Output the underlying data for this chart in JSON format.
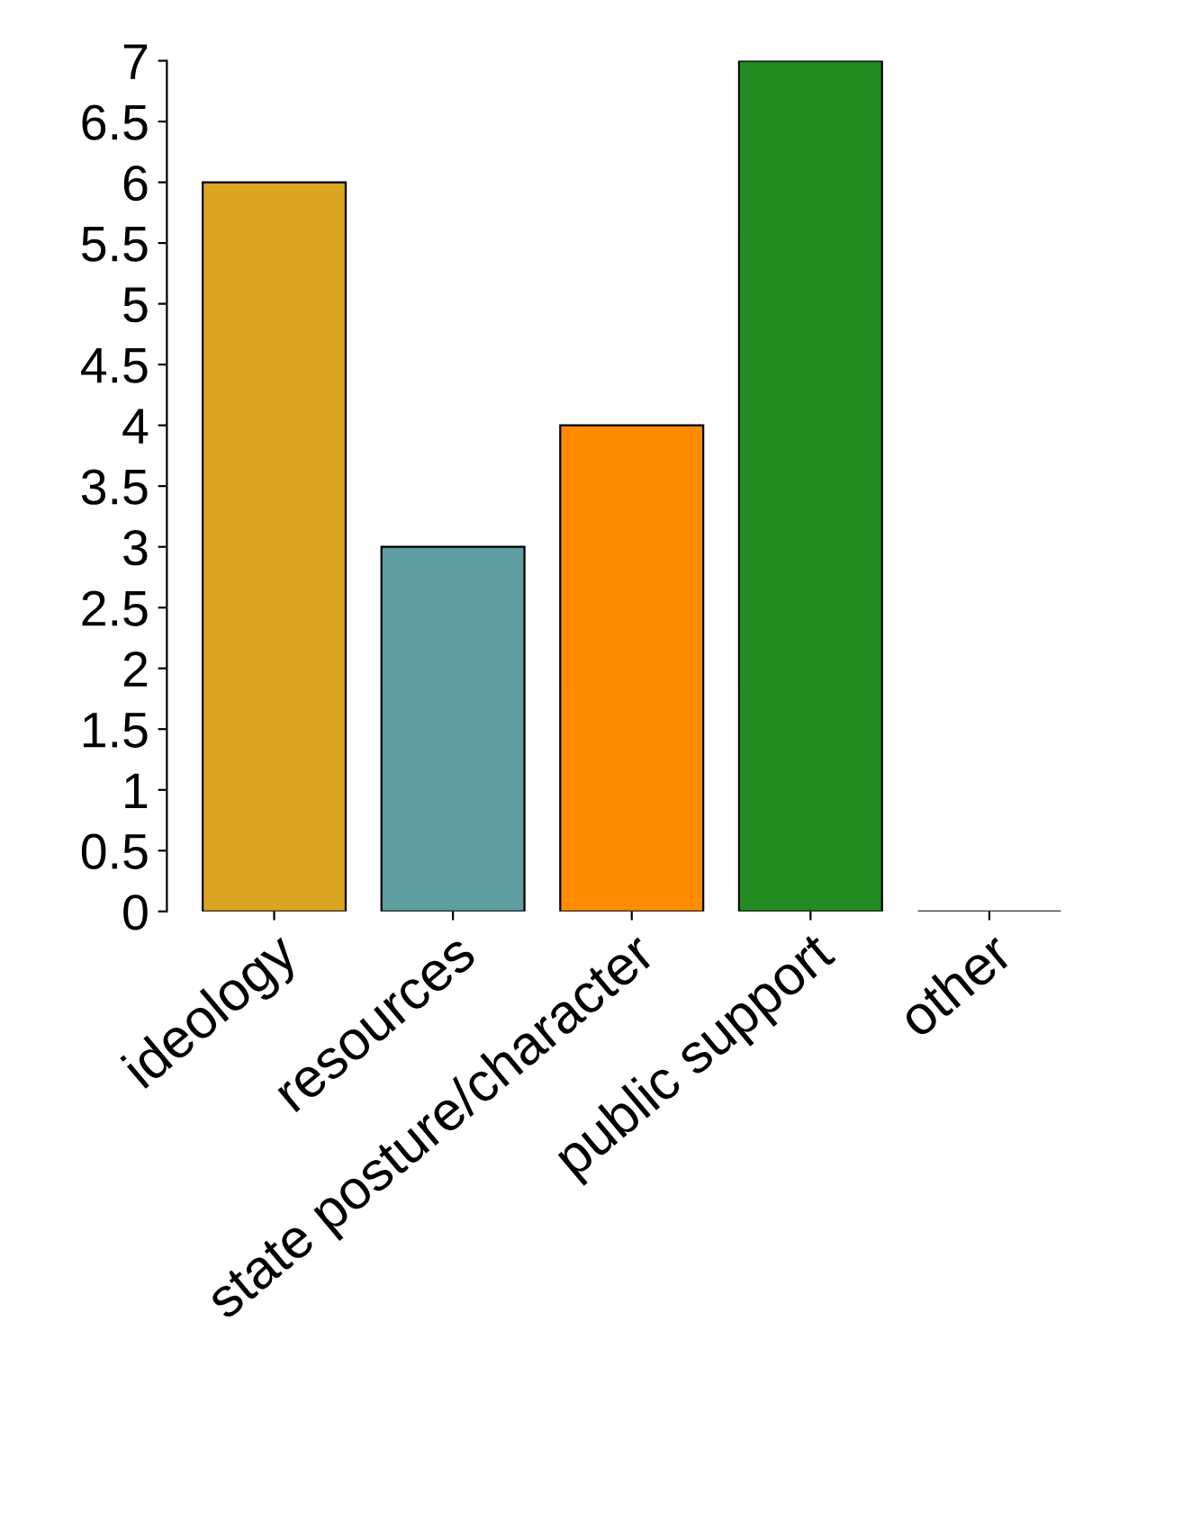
{
  "chart_data": {
    "type": "bar",
    "categories": [
      "ideology",
      "resources",
      "state posture/character",
      "public support",
      "other"
    ],
    "values": [
      6,
      3,
      4,
      7,
      0
    ],
    "colors": [
      "#daa520",
      "#5f9ea0",
      "#ff8c00",
      "#228b22",
      null
    ],
    "ylim": [
      0,
      7
    ],
    "yticks": [
      0,
      0.5,
      1,
      1.5,
      2,
      2.5,
      3,
      3.5,
      4,
      4.5,
      5,
      5.5,
      6,
      6.5,
      7
    ],
    "grid": false
  }
}
